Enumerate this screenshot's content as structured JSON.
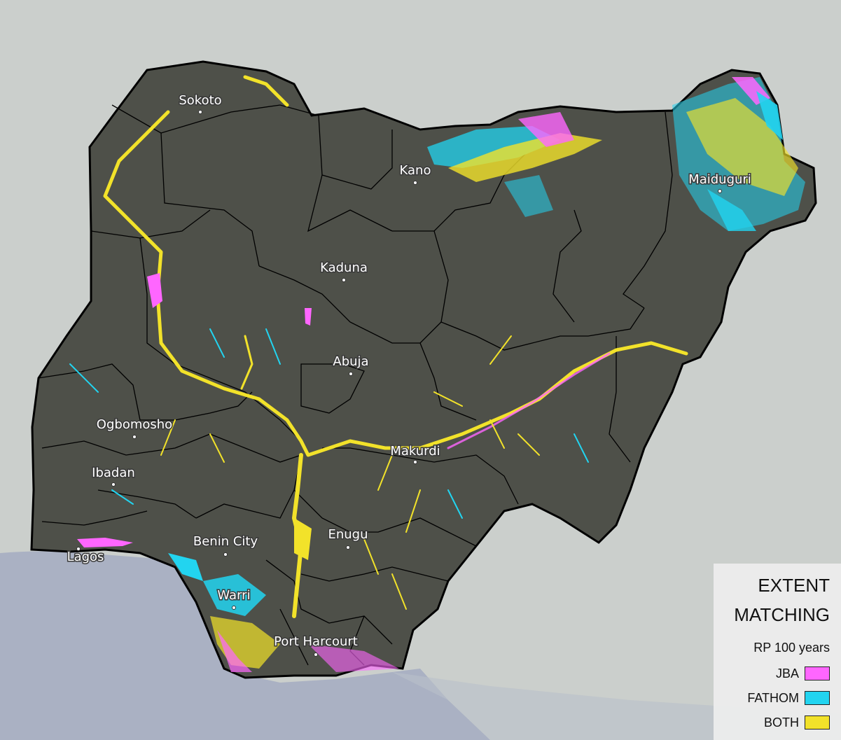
{
  "map": {
    "cities": [
      {
        "name": "Sokoto"
      },
      {
        "name": "Kano"
      },
      {
        "name": "Maiduguri"
      },
      {
        "name": "Kaduna"
      },
      {
        "name": "Abuja"
      },
      {
        "name": "Ogbomosho"
      },
      {
        "name": "Makurdi"
      },
      {
        "name": "Ibadan"
      },
      {
        "name": "Benin City"
      },
      {
        "name": "Enugu"
      },
      {
        "name": "Lagos"
      },
      {
        "name": "Warri"
      },
      {
        "name": "Port Harcourt"
      }
    ]
  },
  "legend": {
    "title_line1": "EXTENT",
    "title_line2": "MATCHING",
    "subtitle": "RP 100 years",
    "items": [
      {
        "label": "JBA",
        "color": "#ff66ff"
      },
      {
        "label": "FATHOM",
        "color": "#22d4f0"
      },
      {
        "label": "BOTH",
        "color": "#f2e22a"
      }
    ]
  },
  "colors": {
    "land": "#4e5049",
    "ocean": "#aab0c2",
    "outside": "#c9cdc9",
    "border": "#000000"
  }
}
